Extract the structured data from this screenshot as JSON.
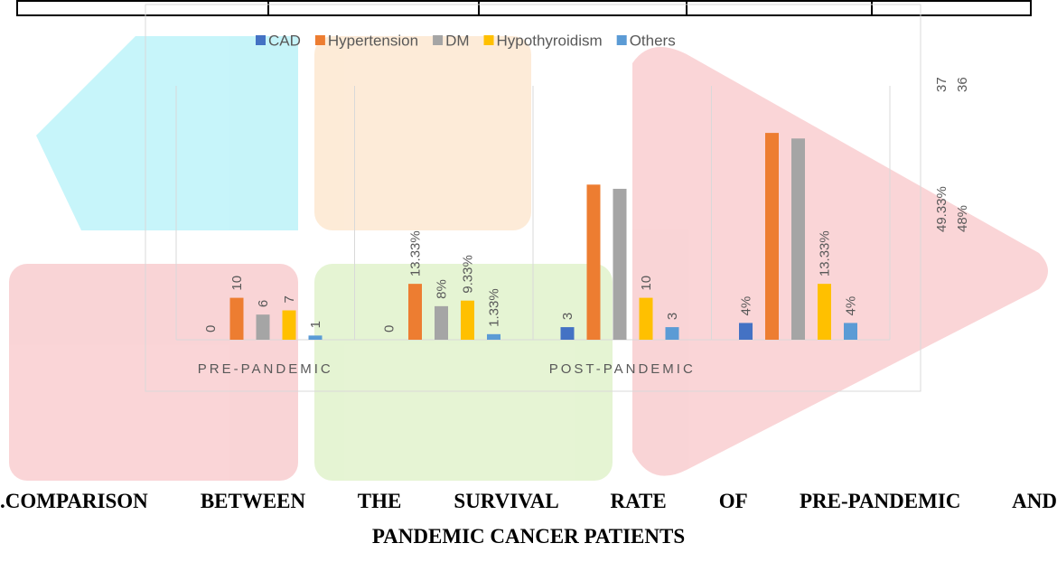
{
  "chart_data": {
    "type": "bar",
    "categories": [
      "PRE-PANDEMIC",
      null,
      "POST-PANDEMIC",
      null
    ],
    "series": [
      {
        "name": "CAD",
        "color": "#4472c4",
        "values": [
          0,
          0,
          3,
          4
        ],
        "value_labels": [
          "0",
          "0",
          "3",
          "4%"
        ]
      },
      {
        "name": "Hypertension",
        "color": "#ed7d31",
        "values": [
          10,
          13.33,
          37,
          49.33
        ],
        "value_labels": [
          "10",
          "13.33%",
          "37",
          "49.33%"
        ]
      },
      {
        "name": "DM",
        "color": "#a5a5a5",
        "values": [
          6,
          8,
          36,
          48
        ],
        "value_labels": [
          "6",
          "8%",
          "36",
          "48%"
        ]
      },
      {
        "name": "Hypothyroidism",
        "color": "#ffc000",
        "values": [
          7,
          9.33,
          10,
          13.33
        ],
        "value_labels": [
          "7",
          "9.33%",
          "10",
          "13.33%"
        ]
      },
      {
        "name": "Others",
        "color": "#5b9bd5",
        "values": [
          1,
          1.33,
          3,
          4
        ],
        "value_labels": [
          "1",
          "1.33%",
          "3",
          "4%"
        ]
      }
    ],
    "ylim": [
      0,
      50
    ],
    "legend": "top"
  },
  "heading": [
    ".COMPARISON BETWEEN THE SURVIVAL RATE OF PRE-PANDEMIC AND",
    "PANDEMIC CANCER PATIENTS"
  ]
}
